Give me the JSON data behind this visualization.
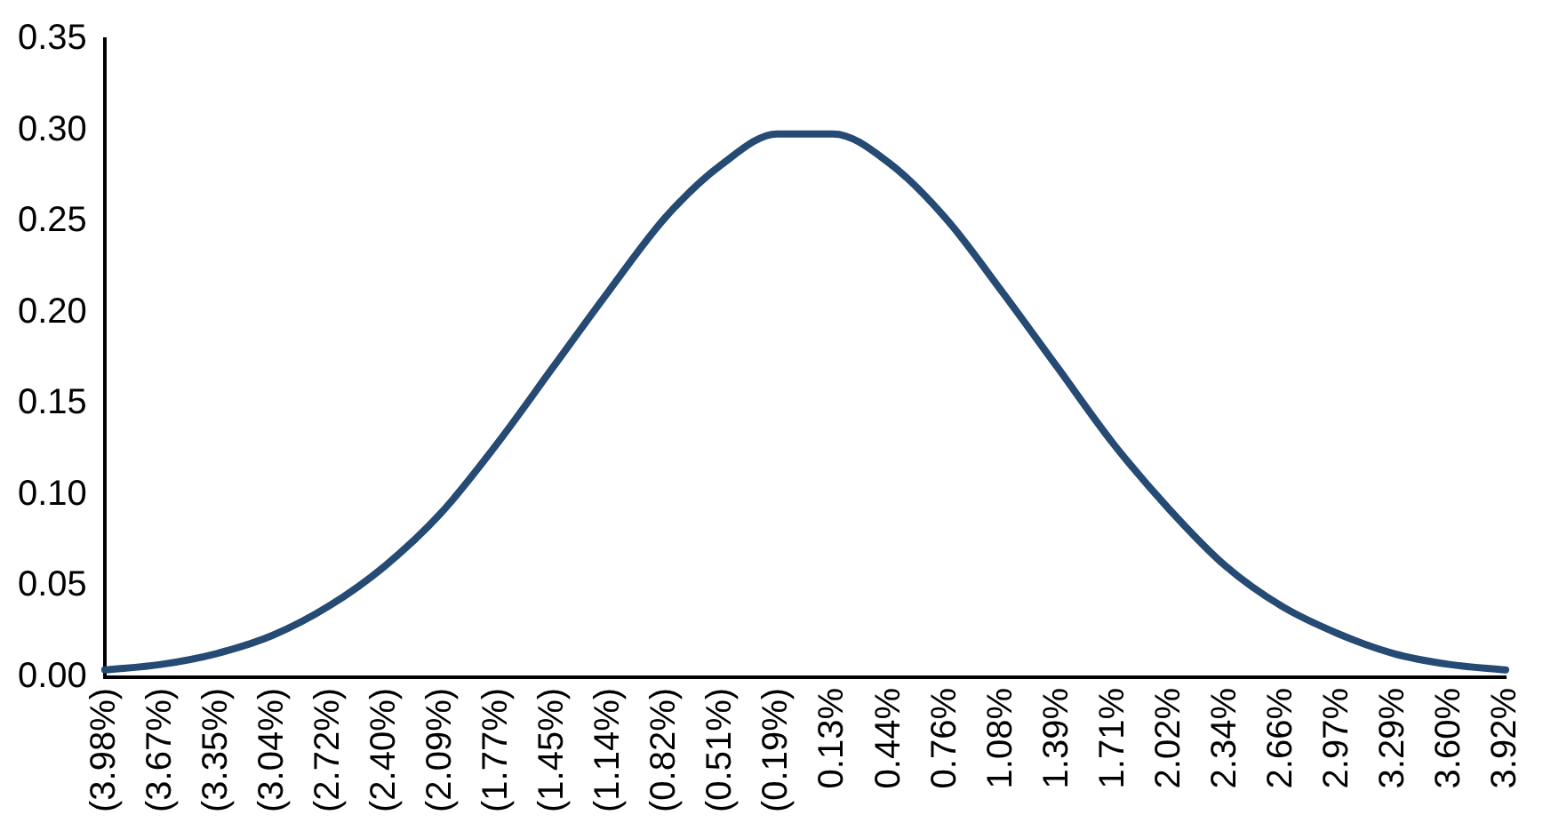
{
  "chart_data": {
    "type": "line",
    "categories": [
      "(3.98%)",
      "(3.67%)",
      "(3.35%)",
      "(3.04%)",
      "(2.72%)",
      "(2.40%)",
      "(2.09%)",
      "(1.77%)",
      "(1.45%)",
      "(1.14%)",
      "(0.82%)",
      "(0.51%)",
      "(0.19%)",
      "0.13%",
      "0.44%",
      "0.76%",
      "1.08%",
      "1.39%",
      "1.71%",
      "2.02%",
      "2.34%",
      "2.66%",
      "2.97%",
      "3.29%",
      "3.60%",
      "3.92%"
    ],
    "series": [
      {
        "color": "#254a73",
        "values": [
          0.004,
          0.007,
          0.013,
          0.023,
          0.039,
          0.061,
          0.09,
          0.128,
          0.17,
          0.212,
          0.252,
          0.281,
          0.298,
          0.298,
          0.282,
          0.252,
          0.212,
          0.17,
          0.128,
          0.092,
          0.061,
          0.039,
          0.024,
          0.013,
          0.007,
          0.004
        ]
      }
    ],
    "ylim": [
      0,
      0.35
    ],
    "yticks": [
      {
        "value": 0,
        "label": "0.00"
      },
      {
        "value": 0.05,
        "label": "0.05"
      },
      {
        "value": 0.1,
        "label": "0.10"
      },
      {
        "value": 0.15,
        "label": "0.15"
      },
      {
        "value": 0.2,
        "label": "0.20"
      },
      {
        "value": 0.25,
        "label": "0.25"
      },
      {
        "value": 0.3,
        "label": "0.30"
      },
      {
        "value": 0.35,
        "label": "0.35"
      }
    ],
    "grid": false,
    "legend": false,
    "marker": "none",
    "line_style": "solid"
  }
}
